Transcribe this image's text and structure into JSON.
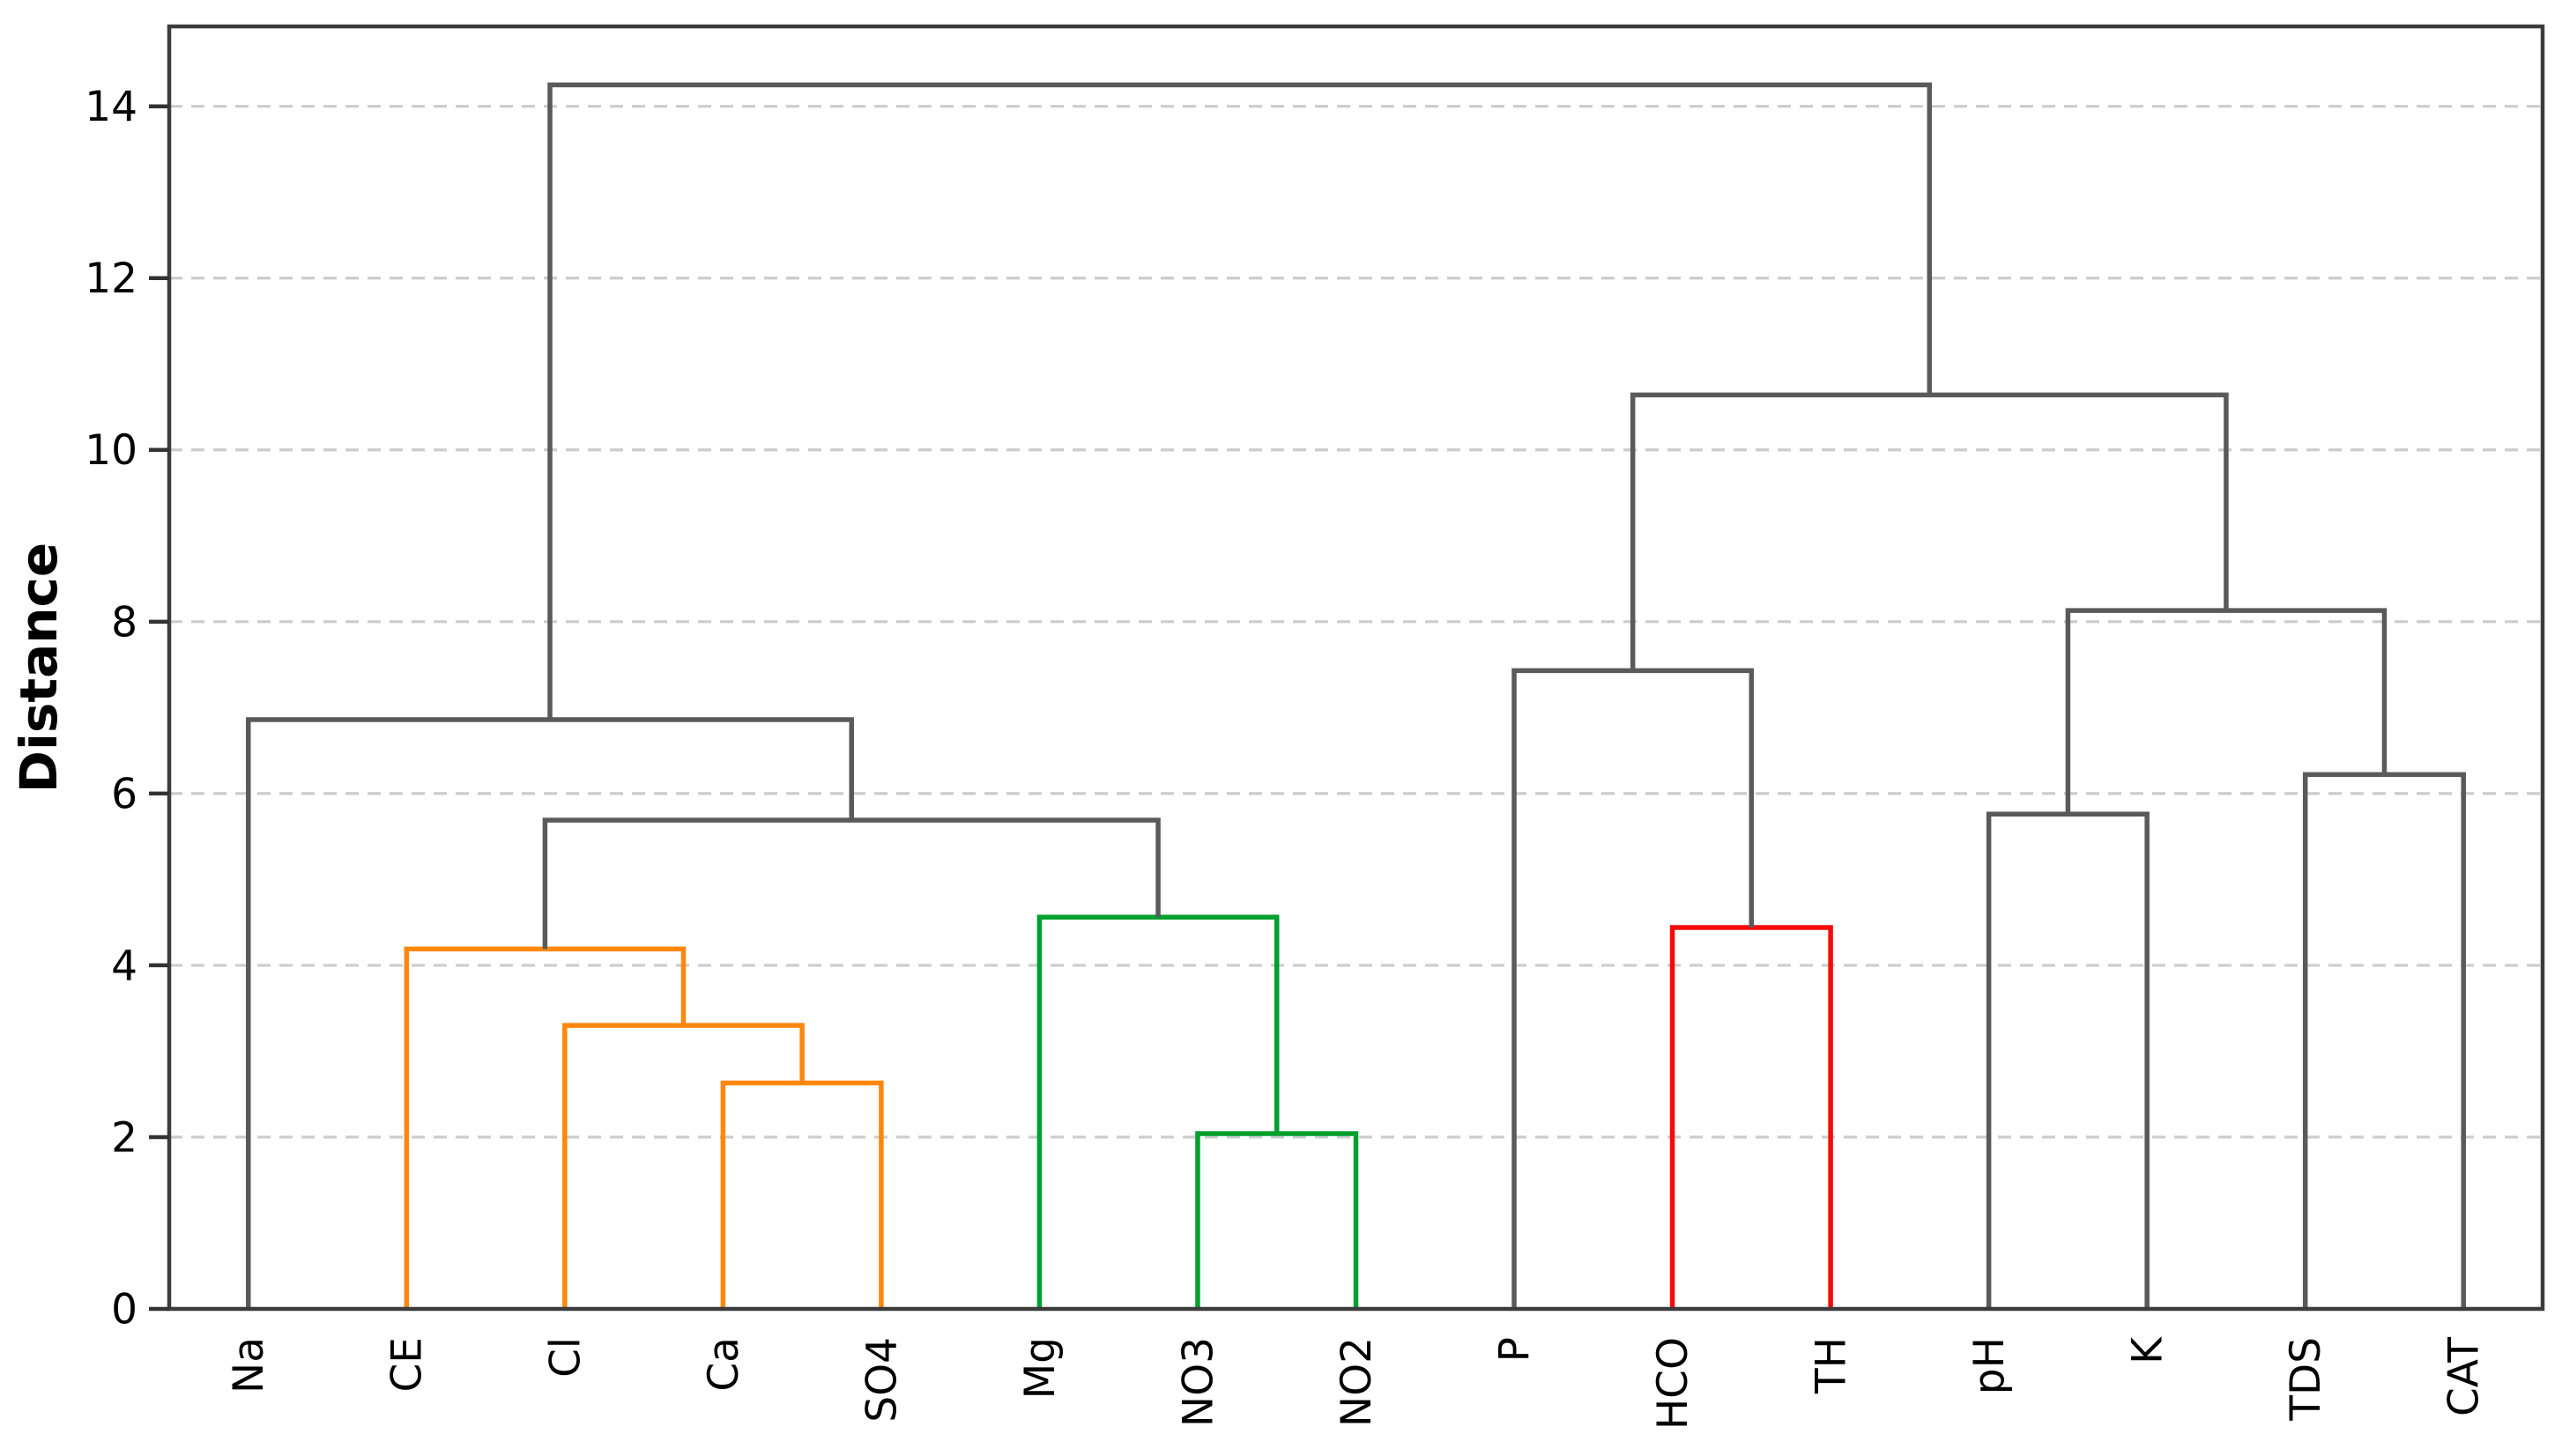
{
  "figure": {
    "background": "#ffffff"
  },
  "chart_data": {
    "type": "dendrogram",
    "title": "",
    "xlabel": "",
    "ylabel": "Distance",
    "y_ticks": [
      0,
      2,
      4,
      6,
      8,
      10,
      12,
      14
    ],
    "ylim": [
      0,
      14.93
    ],
    "grid": {
      "axis": "y",
      "style": "dashed",
      "color": "#cccccc"
    },
    "legend": "none",
    "leaves": [
      "Na",
      "CE",
      "Cl",
      "Ca",
      "SO4",
      "Mg",
      "NO3",
      "NO2",
      "P",
      "HCO",
      "TH",
      "pH",
      "K",
      "TDS",
      "CAT"
    ],
    "colors": {
      "gray": "#5a5a5a",
      "orange": "#ff870d",
      "green": "#00a02e",
      "red": "#f70a0a",
      "spine": "#3c3c3c",
      "tick": "#333333",
      "grid": "#cccccc"
    },
    "linkage_tree": {
      "color": "gray",
      "height": 14.25,
      "children": [
        {
          "color": "gray",
          "height": 6.86,
          "children": [
            {
              "leaf": "Na"
            },
            {
              "color": "gray",
              "height": 5.69,
              "children": [
                {
                  "color": "orange",
                  "height": 4.19,
                  "children": [
                    {
                      "leaf": "CE"
                    },
                    {
                      "color": "orange",
                      "height": 3.3,
                      "children": [
                        {
                          "leaf": "Cl"
                        },
                        {
                          "color": "orange",
                          "height": 2.63,
                          "children": [
                            {
                              "leaf": "Ca"
                            },
                            {
                              "leaf": "SO4"
                            }
                          ]
                        }
                      ]
                    }
                  ]
                },
                {
                  "color": "green",
                  "height": 4.56,
                  "children": [
                    {
                      "leaf": "Mg"
                    },
                    {
                      "color": "green",
                      "height": 2.04,
                      "children": [
                        {
                          "leaf": "NO3"
                        },
                        {
                          "leaf": "NO2"
                        }
                      ]
                    }
                  ]
                }
              ]
            }
          ]
        },
        {
          "color": "gray",
          "height": 10.64,
          "children": [
            {
              "color": "gray",
              "height": 7.43,
              "children": [
                {
                  "leaf": "P"
                },
                {
                  "color": "red",
                  "height": 4.44,
                  "children": [
                    {
                      "leaf": "HCO"
                    },
                    {
                      "leaf": "TH"
                    }
                  ]
                }
              ]
            },
            {
              "color": "gray",
              "height": 8.13,
              "children": [
                {
                  "color": "gray",
                  "height": 5.76,
                  "children": [
                    {
                      "leaf": "pH"
                    },
                    {
                      "leaf": "K"
                    }
                  ]
                },
                {
                  "color": "gray",
                  "height": 6.22,
                  "children": [
                    {
                      "leaf": "TDS"
                    },
                    {
                      "leaf": "CAT"
                    }
                  ]
                }
              ]
            }
          ]
        }
      ]
    }
  }
}
